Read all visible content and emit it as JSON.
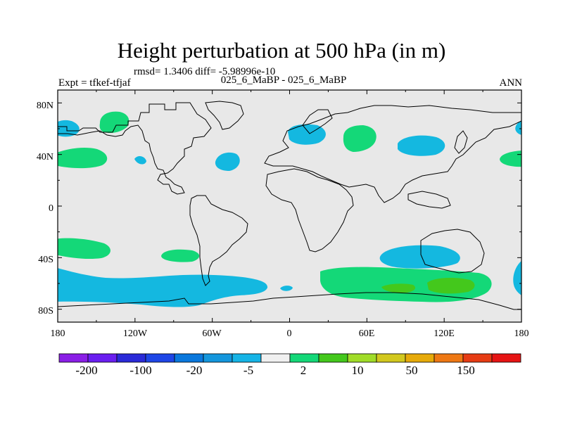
{
  "title": "Height perturbation at 500 hPa (in m)",
  "stats": "rmsd= 1.3406  diff= -5.98996e-10",
  "experiment_label": "Expt = tfkef-tfjaf",
  "comparison": "025_6_MaBP - 025_6_MaBP",
  "season": "ANN",
  "colors": {
    "background": "#e8e8e8",
    "coastline": "#000000",
    "positive_light": "#14d878",
    "positive_mid": "#44c81c",
    "negative_light": "#14b8e0"
  },
  "chart_data": {
    "type": "heatmap",
    "projection": "cylindrical-equidistant",
    "xlim": [
      -180,
      180
    ],
    "ylim": [
      -90,
      90
    ],
    "x_ticks": [
      "180",
      "120W",
      "60W",
      "0",
      "60E",
      "120E",
      "180"
    ],
    "y_ticks": [
      "80N",
      "40N",
      "0",
      "40S",
      "80S"
    ],
    "colorbar": {
      "levels_shown": [
        "-200",
        "-100",
        "-20",
        "-5",
        "2",
        "10",
        "50",
        "150"
      ],
      "swatches": [
        "#8a1ee6",
        "#6a1ef0",
        "#2a2ad8",
        "#1e46e6",
        "#0a78dc",
        "#1496dc",
        "#16b4e6",
        "#f0f0f0",
        "#14d878",
        "#44c81c",
        "#a0dc28",
        "#d2c81e",
        "#e6aa0a",
        "#ee7814",
        "#e63c14",
        "#e61414"
      ]
    },
    "anomalies": [
      {
        "lon": -167,
        "lat": 62,
        "sign": "negative",
        "level": "-5"
      },
      {
        "lon": -145,
        "lat": 67,
        "sign": "positive",
        "level": "2"
      },
      {
        "lon": -156,
        "lat": 37,
        "sign": "positive",
        "level": "2"
      },
      {
        "lon": -120,
        "lat": 38,
        "sign": "negative",
        "level": "-5"
      },
      {
        "lon": -48,
        "lat": 36,
        "sign": "negative",
        "level": "-5"
      },
      {
        "lon": 15,
        "lat": 57,
        "sign": "negative",
        "level": "-5"
      },
      {
        "lon": 55,
        "lat": 54,
        "sign": "positive",
        "level": "2"
      },
      {
        "lon": 102,
        "lat": 50,
        "sign": "negative",
        "level": "-5"
      },
      {
        "lon": 176,
        "lat": 62,
        "sign": "negative",
        "level": "-5"
      },
      {
        "lon": 172,
        "lat": 39,
        "sign": "positive",
        "level": "2"
      },
      {
        "lon": -170,
        "lat": -31,
        "sign": "positive",
        "level": "2"
      },
      {
        "lon": -82,
        "lat": -37,
        "sign": "positive",
        "level": "2"
      },
      {
        "lon": 75,
        "lat": -38,
        "sign": "negative",
        "level": "-5"
      },
      {
        "lon": -120,
        "lat": -61,
        "sign": "negative",
        "level": "-5"
      },
      {
        "lon": -2,
        "lat": -63,
        "sign": "negative",
        "level": "-5"
      },
      {
        "lon": 90,
        "lat": -58,
        "sign": "positive",
        "level": "2"
      },
      {
        "lon": 123,
        "lat": -61,
        "sign": "positive",
        "level": "10"
      },
      {
        "lon": 85,
        "lat": -62,
        "sign": "positive",
        "level": "10"
      },
      {
        "lon": 176,
        "lat": -55,
        "sign": "negative",
        "level": "-5"
      }
    ]
  }
}
